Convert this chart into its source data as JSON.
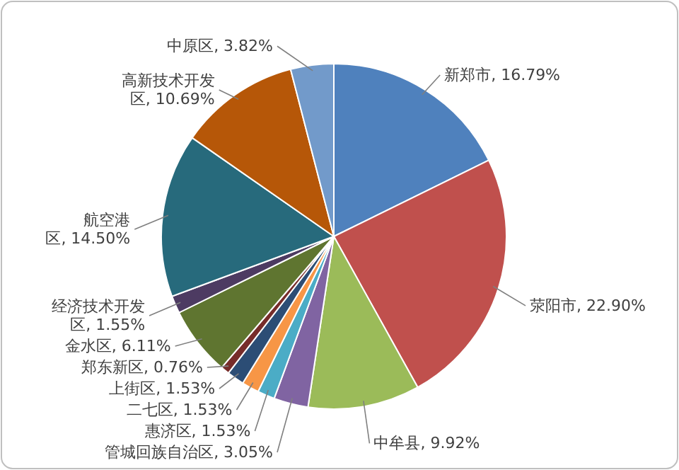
{
  "chart_data": {
    "type": "pie",
    "value_labels": [
      "16.79%",
      "22.90%",
      "9.92%",
      "3.05%",
      "1.53%",
      "1.53%",
      "1.53%",
      "0.76%",
      "6.11%",
      "1.55%",
      "14.50%",
      "10.69%",
      "3.82%"
    ],
    "data_labels": true,
    "categories": [
      "新郑市",
      "荥阳市",
      "中牟县",
      "管城回族自治区",
      "惠济区",
      "二七区",
      "上街区",
      "郑东新区",
      "金水区",
      "经济技术开发区",
      "航空港区",
      "高新技术开发区",
      "中原区"
    ],
    "values": [
      16.79,
      22.9,
      9.92,
      3.05,
      1.53,
      1.53,
      1.53,
      0.76,
      6.11,
      1.55,
      14.5,
      10.69,
      3.82
    ],
    "colors": [
      "#4f81bd",
      "#c0504d",
      "#9bbb59",
      "#8064a2",
      "#4bacc6",
      "#f79646",
      "#2c4d75",
      "#772c2a",
      "#5f7530",
      "#4d3b62",
      "#276a7c",
      "#b65708",
      "#729aca"
    ]
  }
}
